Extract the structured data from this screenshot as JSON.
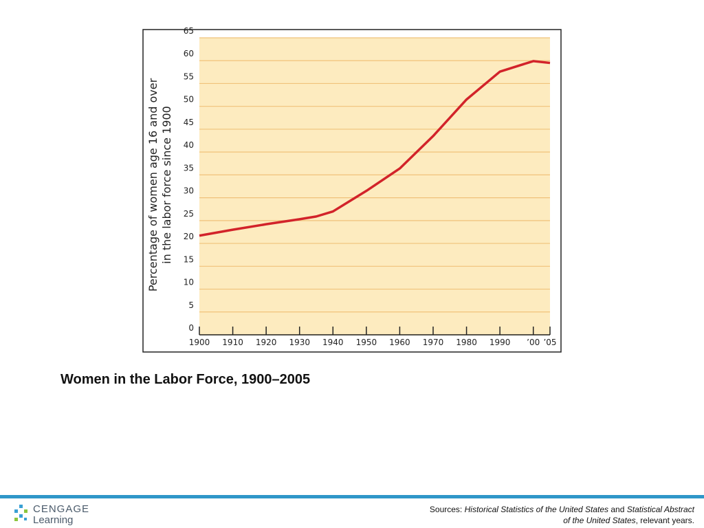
{
  "chart_data": {
    "type": "line",
    "title": "Women in the Labor Force, 1900–2005",
    "ylabel": [
      "Percentage of women age 16 and over",
      "in the labor force since 1900"
    ],
    "x": [
      1900,
      1910,
      1920,
      1930,
      1935,
      1940,
      1950,
      1960,
      1970,
      1980,
      1990,
      2000,
      2005
    ],
    "series": [
      {
        "color": "#d2232a",
        "values": [
          21.7,
          23.0,
          24.2,
          25.3,
          25.9,
          27.0,
          31.5,
          36.4,
          43.5,
          51.5,
          57.6,
          59.9,
          59.5
        ]
      }
    ],
    "xlim": [
      1900,
      2005
    ],
    "xticks": [
      1900,
      1910,
      1920,
      1930,
      1940,
      1950,
      1960,
      1970,
      1980,
      1990,
      {
        "value": 2000,
        "label": "’00"
      },
      {
        "value": 2005,
        "label": "’05"
      }
    ],
    "ylim": [
      0,
      65
    ],
    "yticks": [
      0,
      5,
      10,
      15,
      20,
      25,
      30,
      35,
      40,
      45,
      50,
      55,
      60,
      65
    ],
    "grid": true
  },
  "footer": {
    "logo": [
      "CENGAGE",
      "Learning"
    ],
    "sources": [
      [
        {
          "text": "Sources: ",
          "italic": false
        },
        {
          "text": "Historical Statistics of the United States",
          "italic": true
        },
        {
          "text": " and ",
          "italic": false
        },
        {
          "text": "Statistical Abstract",
          "italic": true
        }
      ],
      [
        {
          "text": "of the United States",
          "italic": true
        },
        {
          "text": ", relevant years.",
          "italic": false
        }
      ]
    ]
  }
}
